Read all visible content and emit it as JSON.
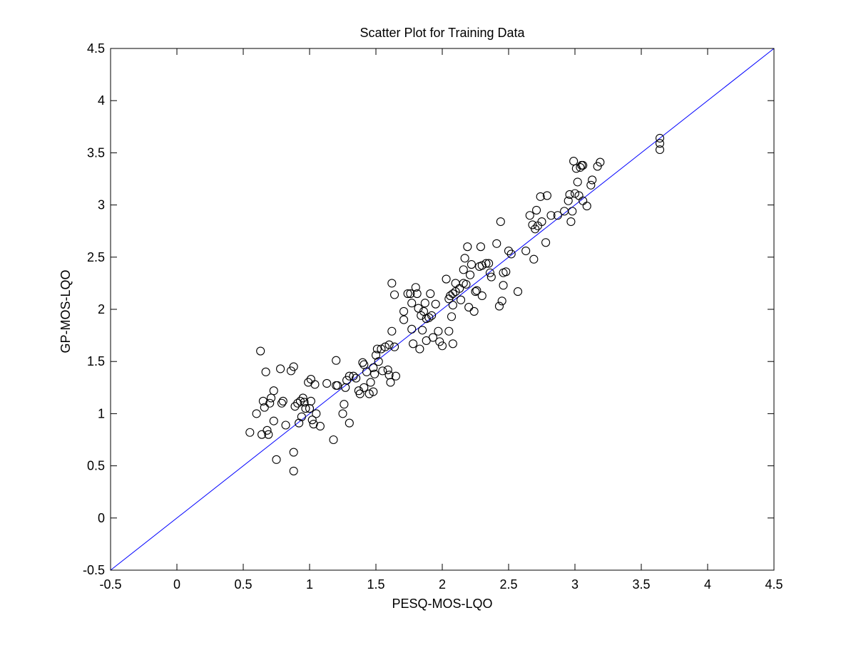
{
  "chart_data": {
    "type": "scatter",
    "title": "Scatter Plot for Training Data",
    "xlabel": "PESQ-MOS-LQO",
    "ylabel": "GP-MOS-LQO",
    "xlim": [
      -0.5,
      4.5
    ],
    "ylim": [
      -0.5,
      4.5
    ],
    "xticks": [
      "-0.5",
      "0",
      "0.5",
      "1",
      "1.5",
      "2",
      "2.5",
      "3",
      "3.5",
      "4",
      "4.5"
    ],
    "yticks": [
      "-0.5",
      "0",
      "0.5",
      "1",
      "1.5",
      "2",
      "2.5",
      "3",
      "3.5",
      "4",
      "4.5"
    ],
    "grid": false,
    "marker": "open-circle",
    "marker_color": "#000000",
    "reference_line": {
      "x": [
        -0.5,
        4.5
      ],
      "y": [
        -0.5,
        4.5
      ],
      "color": "#0000ff"
    },
    "series": [
      {
        "points": [
          [
            0.55,
            0.82
          ],
          [
            0.6,
            1.0
          ],
          [
            0.63,
            1.6
          ],
          [
            0.64,
            0.8
          ],
          [
            0.65,
            1.12
          ],
          [
            0.66,
            1.06
          ],
          [
            0.67,
            1.4
          ],
          [
            0.68,
            0.84
          ],
          [
            0.69,
            0.8
          ],
          [
            0.7,
            1.1
          ],
          [
            0.71,
            1.15
          ],
          [
            0.73,
            1.22
          ],
          [
            0.73,
            0.93
          ],
          [
            0.75,
            0.56
          ],
          [
            0.78,
            1.43
          ],
          [
            0.79,
            1.1
          ],
          [
            0.8,
            1.12
          ],
          [
            0.82,
            0.89
          ],
          [
            0.86,
            1.41
          ],
          [
            0.88,
            1.45
          ],
          [
            0.88,
            0.63
          ],
          [
            0.88,
            0.45
          ],
          [
            0.89,
            1.07
          ],
          [
            0.91,
            1.1
          ],
          [
            0.92,
            0.91
          ],
          [
            0.93,
            1.12
          ],
          [
            0.94,
            0.97
          ],
          [
            0.95,
            1.15
          ],
          [
            0.96,
            1.11
          ],
          [
            0.97,
            1.05
          ],
          [
            0.99,
            1.3
          ],
          [
            1.0,
            1.05
          ],
          [
            1.01,
            1.12
          ],
          [
            1.01,
            1.33
          ],
          [
            1.02,
            0.94
          ],
          [
            1.03,
            0.9
          ],
          [
            1.04,
            1.28
          ],
          [
            1.05,
            1.0
          ],
          [
            1.08,
            0.88
          ],
          [
            1.13,
            1.29
          ],
          [
            1.18,
            0.75
          ],
          [
            1.2,
            1.51
          ],
          [
            1.2,
            1.27
          ],
          [
            1.21,
            1.27
          ],
          [
            1.25,
            1.0
          ],
          [
            1.26,
            1.09
          ],
          [
            1.27,
            1.25
          ],
          [
            1.28,
            1.32
          ],
          [
            1.3,
            1.36
          ],
          [
            1.3,
            0.91
          ],
          [
            1.33,
            1.36
          ],
          [
            1.35,
            1.34
          ],
          [
            1.37,
            1.22
          ],
          [
            1.38,
            1.19
          ],
          [
            1.4,
            1.49
          ],
          [
            1.41,
            1.47
          ],
          [
            1.41,
            1.25
          ],
          [
            1.43,
            1.4
          ],
          [
            1.45,
            1.19
          ],
          [
            1.46,
            1.3
          ],
          [
            1.48,
            1.21
          ],
          [
            1.48,
            1.44
          ],
          [
            1.49,
            1.38
          ],
          [
            1.5,
            1.56
          ],
          [
            1.51,
            1.62
          ],
          [
            1.52,
            1.5
          ],
          [
            1.54,
            1.62
          ],
          [
            1.55,
            1.41
          ],
          [
            1.57,
            1.64
          ],
          [
            1.59,
            1.42
          ],
          [
            1.6,
            1.66
          ],
          [
            1.6,
            1.37
          ],
          [
            1.61,
            1.3
          ],
          [
            1.62,
            2.25
          ],
          [
            1.62,
            1.79
          ],
          [
            1.64,
            1.64
          ],
          [
            1.64,
            2.14
          ],
          [
            1.65,
            1.36
          ],
          [
            1.71,
            1.98
          ],
          [
            1.71,
            1.9
          ],
          [
            1.74,
            2.15
          ],
          [
            1.76,
            2.15
          ],
          [
            1.77,
            1.81
          ],
          [
            1.77,
            2.06
          ],
          [
            1.78,
            1.67
          ],
          [
            1.8,
            2.21
          ],
          [
            1.81,
            2.15
          ],
          [
            1.82,
            2.01
          ],
          [
            1.83,
            1.62
          ],
          [
            1.84,
            1.94
          ],
          [
            1.85,
            1.8
          ],
          [
            1.86,
            1.98
          ],
          [
            1.87,
            2.06
          ],
          [
            1.88,
            1.91
          ],
          [
            1.88,
            1.7
          ],
          [
            1.9,
            1.92
          ],
          [
            1.91,
            2.15
          ],
          [
            1.92,
            1.94
          ],
          [
            1.93,
            1.73
          ],
          [
            1.95,
            2.05
          ],
          [
            1.97,
            1.79
          ],
          [
            1.98,
            1.69
          ],
          [
            2.0,
            1.65
          ],
          [
            2.03,
            2.29
          ],
          [
            2.05,
            2.1
          ],
          [
            2.05,
            1.79
          ],
          [
            2.06,
            2.13
          ],
          [
            2.07,
            1.93
          ],
          [
            2.08,
            2.15
          ],
          [
            2.08,
            2.04
          ],
          [
            2.08,
            1.67
          ],
          [
            2.1,
            2.17
          ],
          [
            2.1,
            2.25
          ],
          [
            2.13,
            2.2
          ],
          [
            2.14,
            2.09
          ],
          [
            2.16,
            2.25
          ],
          [
            2.16,
            2.38
          ],
          [
            2.17,
            2.49
          ],
          [
            2.18,
            2.24
          ],
          [
            2.19,
            2.6
          ],
          [
            2.2,
            2.02
          ],
          [
            2.21,
            2.33
          ],
          [
            2.22,
            2.43
          ],
          [
            2.24,
            1.98
          ],
          [
            2.25,
            2.17
          ],
          [
            2.26,
            2.18
          ],
          [
            2.28,
            2.41
          ],
          [
            2.29,
            2.6
          ],
          [
            2.3,
            2.13
          ],
          [
            2.3,
            2.42
          ],
          [
            2.33,
            2.44
          ],
          [
            2.35,
            2.44
          ],
          [
            2.36,
            2.35
          ],
          [
            2.37,
            2.31
          ],
          [
            2.41,
            2.63
          ],
          [
            2.43,
            2.03
          ],
          [
            2.44,
            2.84
          ],
          [
            2.45,
            2.08
          ],
          [
            2.46,
            2.23
          ],
          [
            2.46,
            2.35
          ],
          [
            2.48,
            2.36
          ],
          [
            2.5,
            2.56
          ],
          [
            2.52,
            2.53
          ],
          [
            2.57,
            2.17
          ],
          [
            2.63,
            2.56
          ],
          [
            2.66,
            2.9
          ],
          [
            2.68,
            2.81
          ],
          [
            2.69,
            2.48
          ],
          [
            2.7,
            2.77
          ],
          [
            2.71,
            2.95
          ],
          [
            2.72,
            2.8
          ],
          [
            2.74,
            3.08
          ],
          [
            2.75,
            2.84
          ],
          [
            2.78,
            2.64
          ],
          [
            2.79,
            3.09
          ],
          [
            2.82,
            2.9
          ],
          [
            2.87,
            2.9
          ],
          [
            2.92,
            2.94
          ],
          [
            2.95,
            3.04
          ],
          [
            2.96,
            3.1
          ],
          [
            2.97,
            2.84
          ],
          [
            2.98,
            2.94
          ],
          [
            2.99,
            3.42
          ],
          [
            3.0,
            3.11
          ],
          [
            3.01,
            3.35
          ],
          [
            3.02,
            3.22
          ],
          [
            3.03,
            3.09
          ],
          [
            3.04,
            3.36
          ],
          [
            3.05,
            3.38
          ],
          [
            3.06,
            3.38
          ],
          [
            3.06,
            3.04
          ],
          [
            3.09,
            2.99
          ],
          [
            3.12,
            3.19
          ],
          [
            3.13,
            3.24
          ],
          [
            3.17,
            3.37
          ],
          [
            3.19,
            3.41
          ],
          [
            3.64,
            3.64
          ],
          [
            3.64,
            3.59
          ],
          [
            3.64,
            3.53
          ]
        ]
      }
    ]
  }
}
